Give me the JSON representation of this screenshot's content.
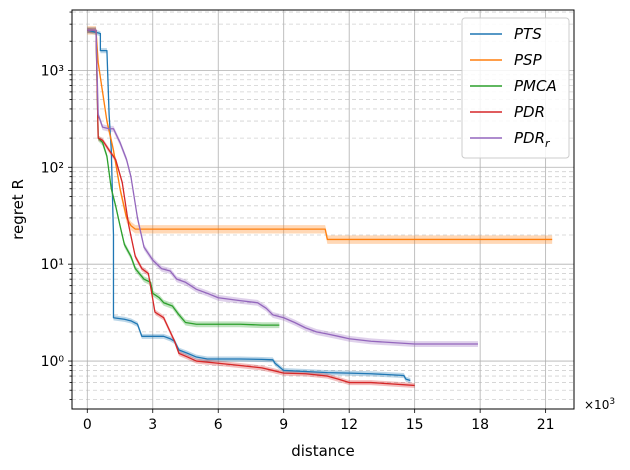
{
  "chart_data": {
    "type": "line",
    "xlabel": "distance",
    "ylabel": "regret R",
    "x_offset_label": "×10",
    "x_offset_exponent": "3",
    "xlim": [
      -0.7,
      22.3
    ],
    "ylim": [
      0.32,
      4200
    ],
    "yscale": "log",
    "x_ticks": [
      0,
      3,
      6,
      9,
      12,
      15,
      18,
      21
    ],
    "x_tick_labels": [
      "0",
      "3",
      "6",
      "9",
      "12",
      "15",
      "18",
      "21"
    ],
    "y_ticks": [
      1,
      10,
      100,
      1000
    ],
    "y_tick_labels": [
      "10⁰",
      "10¹",
      "10²",
      "10³"
    ],
    "grid": true,
    "legend_position": "top-right",
    "series": [
      {
        "name": "PTS",
        "color": "#1f77b4",
        "points": [
          [
            0,
            2600
          ],
          [
            0.6,
            2400
          ],
          [
            0.6,
            2000
          ],
          [
            0.6,
            1600
          ],
          [
            0.9,
            1600
          ],
          [
            1.0,
            350
          ],
          [
            1.1,
            150
          ],
          [
            1.2,
            20
          ],
          [
            1.2,
            2.8
          ],
          [
            1.7,
            2.7
          ],
          [
            2.0,
            2.6
          ],
          [
            2.3,
            2.4
          ],
          [
            2.5,
            1.8
          ],
          [
            3.5,
            1.8
          ],
          [
            3.8,
            1.7
          ],
          [
            4.0,
            1.6
          ],
          [
            4.2,
            1.3
          ],
          [
            4.6,
            1.2
          ],
          [
            5.0,
            1.1
          ],
          [
            5.5,
            1.05
          ],
          [
            6.0,
            1.05
          ],
          [
            7.0,
            1.05
          ],
          [
            8.0,
            1.04
          ],
          [
            8.5,
            1.03
          ],
          [
            8.6,
            0.95
          ],
          [
            9.0,
            0.8
          ],
          [
            10.0,
            0.78
          ],
          [
            11.0,
            0.76
          ],
          [
            12.0,
            0.75
          ],
          [
            13.0,
            0.74
          ],
          [
            14.0,
            0.72
          ],
          [
            14.5,
            0.71
          ],
          [
            14.6,
            0.65
          ],
          [
            14.8,
            0.63
          ]
        ],
        "band": 0.06
      },
      {
        "name": "PSP",
        "color": "#ff7f0e",
        "points": [
          [
            0,
            2600
          ],
          [
            0.4,
            2600
          ],
          [
            0.5,
            1200
          ],
          [
            0.7,
            600
          ],
          [
            0.9,
            300
          ],
          [
            1.2,
            150
          ],
          [
            1.5,
            60
          ],
          [
            1.8,
            30
          ],
          [
            2.0,
            25
          ],
          [
            2.2,
            23
          ],
          [
            3.0,
            23
          ],
          [
            5.0,
            23
          ],
          [
            7.0,
            23
          ],
          [
            9.0,
            23
          ],
          [
            10.9,
            23
          ],
          [
            11.0,
            18
          ],
          [
            14.0,
            18
          ],
          [
            18.0,
            18
          ],
          [
            21.3,
            18
          ]
        ],
        "band": 0.1
      },
      {
        "name": "PMCA",
        "color": "#2ca02c",
        "points": [
          [
            0,
            2600
          ],
          [
            0.4,
            2600
          ],
          [
            0.5,
            200
          ],
          [
            0.7,
            180
          ],
          [
            0.9,
            130
          ],
          [
            1.1,
            60
          ],
          [
            1.3,
            40
          ],
          [
            1.5,
            25
          ],
          [
            1.7,
            16
          ],
          [
            2.0,
            12
          ],
          [
            2.2,
            9
          ],
          [
            2.6,
            7
          ],
          [
            2.9,
            6.5
          ],
          [
            3.0,
            5
          ],
          [
            3.3,
            4.5
          ],
          [
            3.5,
            4.0
          ],
          [
            3.9,
            3.7
          ],
          [
            4.2,
            3.0
          ],
          [
            4.5,
            2.5
          ],
          [
            5.0,
            2.4
          ],
          [
            6.0,
            2.4
          ],
          [
            7.0,
            2.4
          ],
          [
            8.0,
            2.35
          ],
          [
            8.8,
            2.35
          ]
        ],
        "band": 0.07
      },
      {
        "name": "PDR",
        "color": "#d62728",
        "points": [
          [
            0,
            2600
          ],
          [
            0.4,
            2600
          ],
          [
            0.5,
            200
          ],
          [
            0.7,
            190
          ],
          [
            1.0,
            150
          ],
          [
            1.3,
            120
          ],
          [
            1.6,
            70
          ],
          [
            1.9,
            25
          ],
          [
            2.2,
            12
          ],
          [
            2.5,
            9
          ],
          [
            2.8,
            8
          ],
          [
            3.1,
            3.2
          ],
          [
            3.5,
            2.8
          ],
          [
            3.8,
            2.0
          ],
          [
            4.0,
            1.6
          ],
          [
            4.2,
            1.2
          ],
          [
            4.6,
            1.1
          ],
          [
            5.0,
            1.0
          ],
          [
            6.0,
            0.95
          ],
          [
            7.0,
            0.9
          ],
          [
            8.0,
            0.85
          ],
          [
            8.5,
            0.8
          ],
          [
            9.0,
            0.75
          ],
          [
            10.0,
            0.74
          ],
          [
            11.0,
            0.7
          ],
          [
            11.5,
            0.65
          ],
          [
            12.0,
            0.6
          ],
          [
            13.0,
            0.6
          ],
          [
            14.0,
            0.58
          ],
          [
            15.0,
            0.56
          ]
        ],
        "band": 0.06
      },
      {
        "name": "PDR_r",
        "color": "#9467bd",
        "points": [
          [
            0,
            2600
          ],
          [
            0.4,
            2600
          ],
          [
            0.5,
            350
          ],
          [
            0.7,
            260
          ],
          [
            1.0,
            250
          ],
          [
            1.2,
            250
          ],
          [
            1.5,
            180
          ],
          [
            1.8,
            120
          ],
          [
            2.0,
            80
          ],
          [
            2.3,
            30
          ],
          [
            2.6,
            15
          ],
          [
            3.0,
            11
          ],
          [
            3.4,
            9
          ],
          [
            3.8,
            8.5
          ],
          [
            4.1,
            7
          ],
          [
            4.5,
            6.5
          ],
          [
            5.0,
            5.5
          ],
          [
            5.5,
            5
          ],
          [
            6.0,
            4.5
          ],
          [
            7.0,
            4.2
          ],
          [
            7.8,
            4.0
          ],
          [
            8.2,
            3.5
          ],
          [
            8.5,
            3.0
          ],
          [
            9.0,
            2.8
          ],
          [
            9.5,
            2.5
          ],
          [
            10.0,
            2.2
          ],
          [
            10.5,
            2.0
          ],
          [
            11.0,
            1.9
          ],
          [
            11.5,
            1.8
          ],
          [
            12.0,
            1.7
          ],
          [
            13.0,
            1.6
          ],
          [
            14.0,
            1.55
          ],
          [
            15.0,
            1.5
          ],
          [
            16.0,
            1.5
          ],
          [
            17.0,
            1.5
          ],
          [
            17.9,
            1.5
          ]
        ],
        "band": 0.07
      }
    ]
  }
}
